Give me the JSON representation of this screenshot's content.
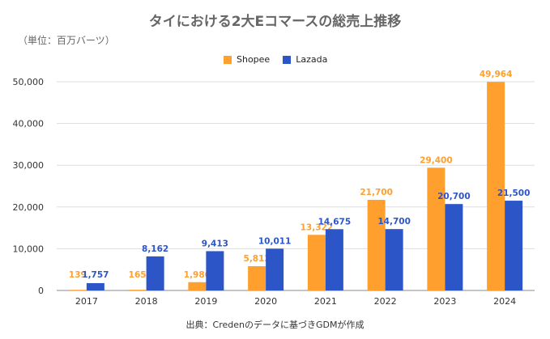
{
  "chart_data": {
    "type": "bar",
    "title": "タイにおける2大Eコマースの総売上推移",
    "unit_note": "（単位：百万バーツ）",
    "source_note": "出典：Credenのデータに基づきGDMが作成",
    "categories": [
      "2017",
      "2018",
      "2019",
      "2020",
      "2021",
      "2022",
      "2023",
      "2024"
    ],
    "series": [
      {
        "name": "Shopee",
        "color": "#ff9f2e",
        "values": [
          139,
          165,
          1986,
          5812,
          13322,
          21700,
          29400,
          49964
        ],
        "labels": [
          "139",
          "165",
          "1,986",
          "5,812",
          "13,322",
          "21,700",
          "29,400",
          "49,964"
        ]
      },
      {
        "name": "Lazada",
        "color": "#2c55c8",
        "values": [
          1757,
          8162,
          9413,
          10011,
          14675,
          14700,
          20700,
          21500
        ],
        "labels": [
          "1,757",
          "8,162",
          "9,413",
          "10,011",
          "14,675",
          "14,700",
          "20,700",
          "21,500"
        ]
      }
    ],
    "ylim": [
      0,
      50000
    ],
    "yticks": [
      0,
      10000,
      20000,
      30000,
      40000,
      50000
    ],
    "ytick_labels": [
      "0",
      "10,000",
      "20,000",
      "30,000",
      "40,000",
      "50,000"
    ],
    "grid": true,
    "legend_position": "top-center"
  }
}
